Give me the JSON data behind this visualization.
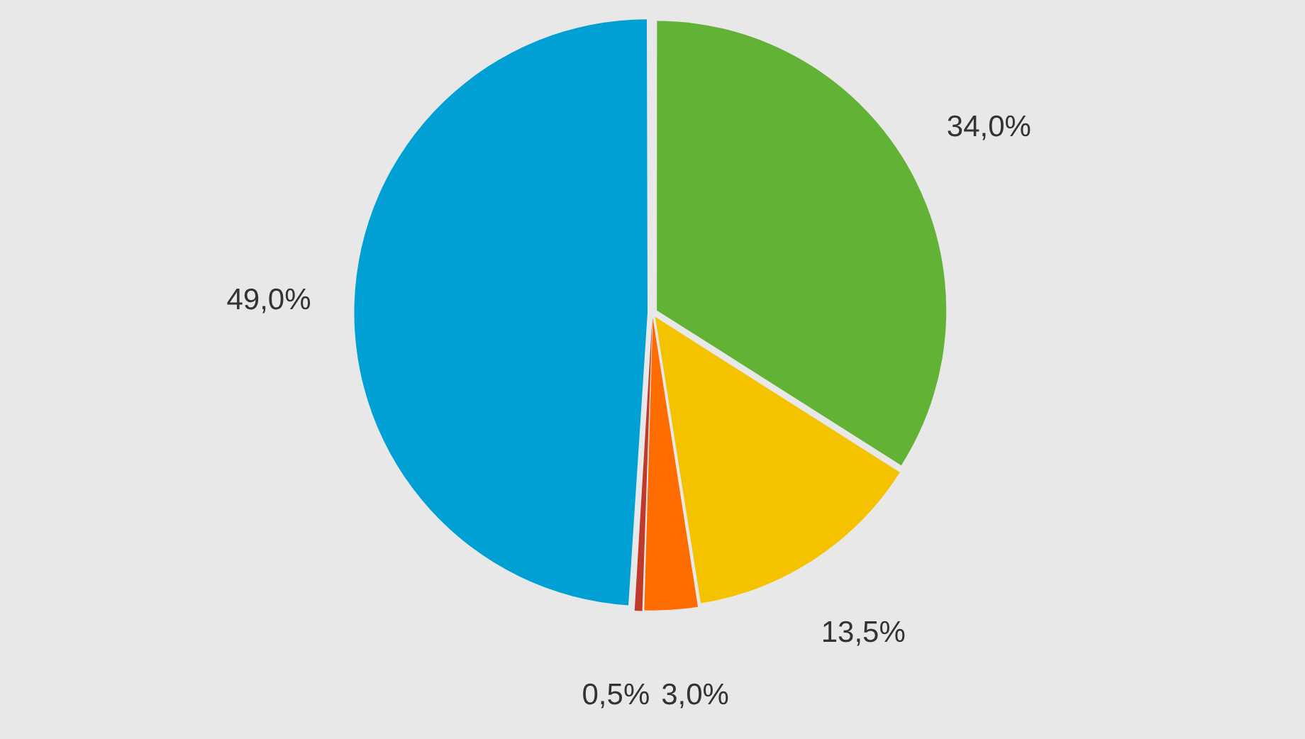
{
  "chart_data": {
    "type": "pie",
    "categories": [
      null,
      null,
      null,
      null,
      null
    ],
    "values": [
      34.0,
      13.5,
      3.0,
      0.5,
      49.0
    ],
    "colors": [
      "#62b236",
      "#f5c200",
      "#ff6c00",
      "#c0392b",
      "#00a0d4"
    ],
    "value_labels": [
      "34,0%",
      "13,5%",
      "3,0%",
      "0,5%",
      "49,0%"
    ],
    "legend": false
  }
}
